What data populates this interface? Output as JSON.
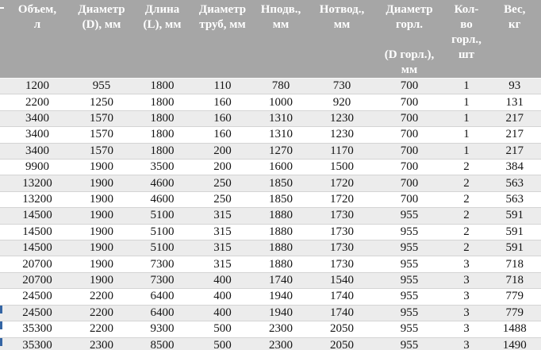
{
  "table": {
    "description": "Tank specifications table (Russian), cropped at left edge",
    "headers": [
      "Объем,\nл",
      "Диаметр\n(D), мм",
      "Длина\n(L), мм",
      "Диаметр\nтруб, мм",
      "Нподв.,\nмм",
      "Нотвод.,\nмм",
      "Диаметр\nгорл.\n\n(D горл.),\nмм",
      "Кол-\nво\nгорл.,\nшт",
      "Вес,\nкг"
    ],
    "rows": [
      [
        "1200",
        "955",
        "1800",
        "110",
        "780",
        "730",
        "700",
        "1",
        "93"
      ],
      [
        "2200",
        "1250",
        "1800",
        "160",
        "1000",
        "920",
        "700",
        "1",
        "131"
      ],
      [
        "3400",
        "1570",
        "1800",
        "160",
        "1310",
        "1230",
        "700",
        "1",
        "217"
      ],
      [
        "3400",
        "1570",
        "1800",
        "160",
        "1310",
        "1230",
        "700",
        "1",
        "217"
      ],
      [
        "3400",
        "1570",
        "1800",
        "200",
        "1270",
        "1170",
        "700",
        "1",
        "217"
      ],
      [
        "9900",
        "1900",
        "3500",
        "200",
        "1600",
        "1500",
        "700",
        "2",
        "384"
      ],
      [
        "13200",
        "1900",
        "4600",
        "250",
        "1850",
        "1720",
        "700",
        "2",
        "563"
      ],
      [
        "13200",
        "1900",
        "4600",
        "250",
        "1850",
        "1720",
        "700",
        "2",
        "563"
      ],
      [
        "14500",
        "1900",
        "5100",
        "315",
        "1880",
        "1730",
        "955",
        "2",
        "591"
      ],
      [
        "14500",
        "1900",
        "5100",
        "315",
        "1880",
        "1730",
        "955",
        "2",
        "591"
      ],
      [
        "14500",
        "1900",
        "5100",
        "315",
        "1880",
        "1730",
        "955",
        "2",
        "591"
      ],
      [
        "20700",
        "1900",
        "7300",
        "315",
        "1880",
        "1730",
        "955",
        "3",
        "718"
      ],
      [
        "20700",
        "1900",
        "7300",
        "400",
        "1740",
        "1540",
        "955",
        "3",
        "718"
      ],
      [
        "24500",
        "2200",
        "6400",
        "400",
        "1940",
        "1740",
        "955",
        "3",
        "779"
      ],
      [
        "24500",
        "2200",
        "6400",
        "400",
        "1940",
        "1740",
        "955",
        "3",
        "779"
      ],
      [
        "35300",
        "2200",
        "9300",
        "500",
        "2300",
        "2050",
        "955",
        "3",
        "1488"
      ],
      [
        "35300",
        "2300",
        "8500",
        "500",
        "2300",
        "2050",
        "955",
        "3",
        "1490"
      ]
    ],
    "cut_left_column": {
      "header_fragment": "-",
      "link_fragment_rows": [
        15,
        16,
        17
      ]
    }
  },
  "colors": {
    "header_bg": "#a6a6a6",
    "header_text": "#ffffff",
    "row_shaded": "#ececec",
    "row_plain": "#ffffff",
    "row_border": "#d4d4d4",
    "cell_text": "#141414",
    "link_fragment_blue": "#3465a4"
  }
}
